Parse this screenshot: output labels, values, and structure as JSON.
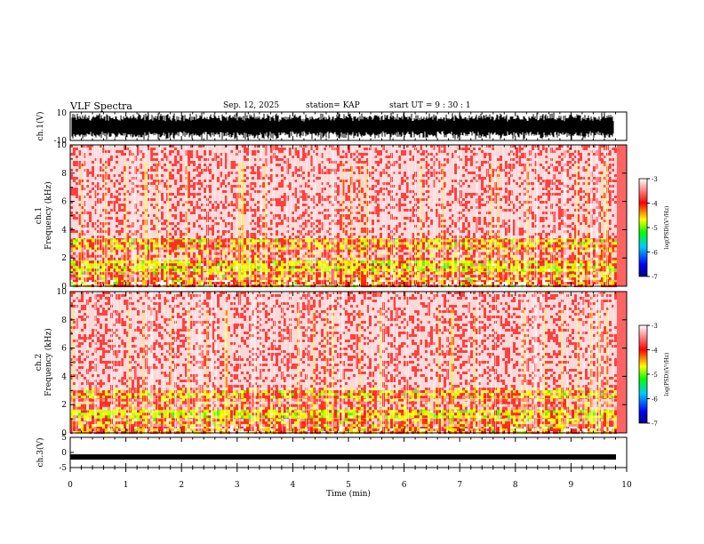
{
  "header": {
    "title": "VLF Spectra",
    "date": "Sep. 12, 2025",
    "station": "station= KAP",
    "start": "start  UT =   9 : 30 : 1"
  },
  "chart_data": [
    {
      "type": "line",
      "name": "ch1-waveform",
      "ylabel": "ch.1(V)",
      "ylim": [
        -10,
        10
      ],
      "tick_labels": [
        "10",
        "-10"
      ],
      "xlim": [
        0,
        10
      ],
      "description_values": {
        "amplitude_range": [
          -10,
          10
        ]
      }
    },
    {
      "type": "heatmap",
      "name": "ch1-spectrogram",
      "ylabel": "ch.1\nFrequency (kHz)",
      "ylabel_lines": [
        "ch.1",
        "Frequency (kHz)"
      ],
      "ylim": [
        0,
        10
      ],
      "y_ticks": [
        0,
        2,
        4,
        6,
        8,
        10
      ],
      "xlim": [
        0,
        10
      ],
      "bands": [
        {
          "f_low": 0,
          "f_high": 0.5,
          "level": 0.85
        },
        {
          "f_low": 0.5,
          "f_high": 1.0,
          "level": 0.65
        },
        {
          "f_low": 1.0,
          "f_high": 2.0,
          "level": 0.75
        },
        {
          "f_low": 2.0,
          "f_high": 2.6,
          "level": 0.6
        },
        {
          "f_low": 2.6,
          "f_high": 3.5,
          "level": 0.68
        },
        {
          "f_low": 3.5,
          "f_high": 10,
          "level": 0.35
        }
      ]
    },
    {
      "type": "heatmap",
      "name": "ch2-spectrogram",
      "ylabel": "ch.2\nFrequency (kHz)",
      "ylabel_lines": [
        "ch.2",
        "Frequency (kHz)"
      ],
      "ylim": [
        0,
        10
      ],
      "y_ticks": [
        0,
        2,
        4,
        6,
        8,
        10
      ],
      "xlim": [
        0,
        10
      ],
      "bands": [
        {
          "f_low": 0,
          "f_high": 0.5,
          "level": 0.85
        },
        {
          "f_low": 0.5,
          "f_high": 1.0,
          "level": 0.65
        },
        {
          "f_low": 1.0,
          "f_high": 1.8,
          "level": 0.75
        },
        {
          "f_low": 1.8,
          "f_high": 2.4,
          "level": 0.6
        },
        {
          "f_low": 2.4,
          "f_high": 3.2,
          "level": 0.68
        },
        {
          "f_low": 3.2,
          "f_high": 10,
          "level": 0.35
        }
      ]
    },
    {
      "type": "line",
      "name": "ch3-waveform",
      "ylabel": "ch.3(V)",
      "ylim": [
        -5,
        5
      ],
      "y_ticks": [
        5,
        0,
        -5
      ],
      "tick_labels": [
        "5",
        "0",
        "-5"
      ],
      "xlim": [
        0,
        10
      ],
      "xlabel": "Time (min)",
      "x_ticks": [
        0,
        1,
        2,
        3,
        4,
        5,
        6,
        7,
        8,
        9,
        10
      ],
      "level": -1.5
    }
  ],
  "colorbar": {
    "label": "log(PSD)(V²/Hz)",
    "range": [
      -7,
      -3
    ],
    "ticks": [
      "-3",
      "-4",
      "-5",
      "-6",
      "-7"
    ],
    "tick_values": [
      -3,
      -4,
      -5,
      -6,
      -7
    ],
    "colors": [
      "#000080",
      "#0000ff",
      "#00c8ff",
      "#00ff00",
      "#c8ff00",
      "#ffff00",
      "#ff0000",
      "#ffffff"
    ]
  }
}
